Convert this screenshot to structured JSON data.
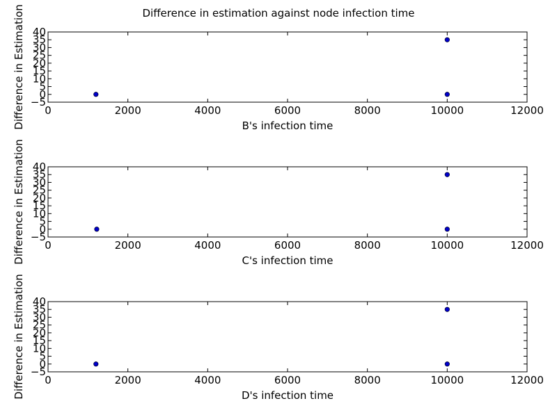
{
  "title": "Difference in estimation against node infection time",
  "style": {
    "marker_fill": "#0000cc",
    "marker_edge": "#000033",
    "axis_color": "#000000",
    "background": "#ffffff"
  },
  "chart_data": [
    {
      "type": "scatter",
      "xlabel": "B's infection time",
      "ylabel": "Difference in Estimation",
      "xlim": [
        0,
        12000
      ],
      "ylim": [
        -5,
        40
      ],
      "xticks": [
        "0",
        "2000",
        "4000",
        "6000",
        "8000",
        "10000",
        "12000"
      ],
      "yticks": [
        "−5",
        "0",
        "5",
        "10",
        "15",
        "20",
        "25",
        "30",
        "35",
        "40"
      ],
      "grid": false,
      "points": [
        {
          "x": 1200,
          "y": 0
        },
        {
          "x": 10000,
          "y": 0
        },
        {
          "x": 10000,
          "y": 35
        }
      ]
    },
    {
      "type": "scatter",
      "xlabel": "C's infection time",
      "ylabel": "Difference in Estimation",
      "xlim": [
        0,
        12000
      ],
      "ylim": [
        -5,
        40
      ],
      "xticks": [
        "0",
        "2000",
        "4000",
        "6000",
        "8000",
        "10000",
        "12000"
      ],
      "yticks": [
        "−5",
        "0",
        "5",
        "10",
        "15",
        "20",
        "25",
        "30",
        "35",
        "40"
      ],
      "grid": false,
      "points": [
        {
          "x": 1220,
          "y": 0
        },
        {
          "x": 10000,
          "y": 0
        },
        {
          "x": 10000,
          "y": 35
        }
      ]
    },
    {
      "type": "scatter",
      "xlabel": "D's infection time",
      "ylabel": "Difference in Estimation",
      "xlim": [
        0,
        12000
      ],
      "ylim": [
        -5,
        40
      ],
      "xticks": [
        "0",
        "2000",
        "4000",
        "6000",
        "8000",
        "10000",
        "12000"
      ],
      "yticks": [
        "−5",
        "0",
        "5",
        "10",
        "15",
        "20",
        "25",
        "30",
        "35",
        "40"
      ],
      "grid": false,
      "points": [
        {
          "x": 1200,
          "y": 0
        },
        {
          "x": 10000,
          "y": 0
        },
        {
          "x": 10000,
          "y": 35
        }
      ]
    }
  ]
}
